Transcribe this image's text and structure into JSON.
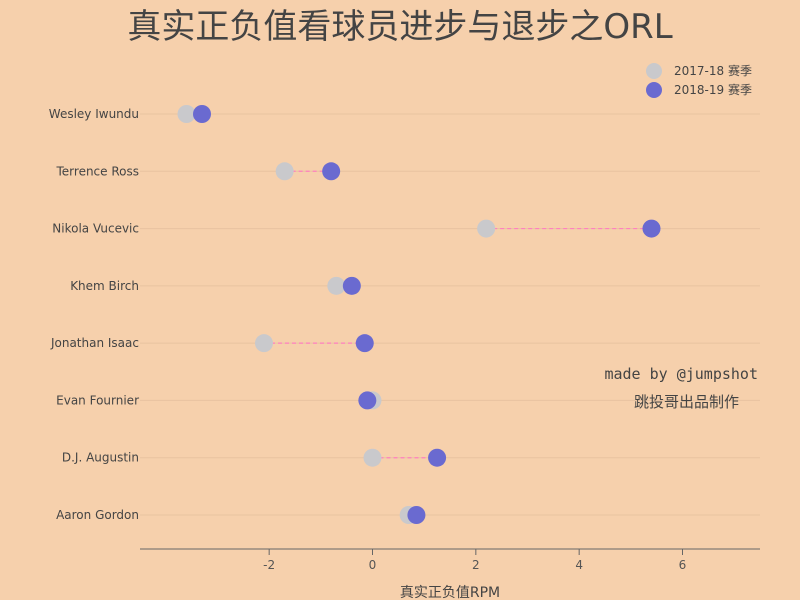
{
  "chart_data": {
    "type": "scatter",
    "title": "真实正负值看球员进步与退步之ORL",
    "xlabel": "真实正负值RPM",
    "ylabel": "",
    "xlim": [
      -4.5,
      7.5
    ],
    "xticks": [
      -2,
      0,
      2,
      4,
      6
    ],
    "xtick_labels": [
      "-2",
      "0",
      "2",
      "4",
      "6"
    ],
    "grid": "horizontal",
    "legend_position": "top-right",
    "categories": [
      "Wesley Iwundu",
      "Terrence Ross",
      "Nikola Vucevic",
      "Khem Birch",
      "Jonathan Isaac",
      "Evan Fournier",
      "D.J. Augustin",
      "Aaron Gordon"
    ],
    "series": [
      {
        "name": "2017-18 赛季",
        "color": "#c9c9cc",
        "values": [
          -3.6,
          -1.7,
          2.2,
          -0.7,
          -2.1,
          0.0,
          0.0,
          0.7
        ]
      },
      {
        "name": "2018-19 赛季",
        "color": "#6a6ad0",
        "values": [
          -3.3,
          -0.8,
          5.4,
          -0.4,
          -0.15,
          -0.1,
          1.25,
          0.85
        ]
      }
    ],
    "connector_color": "#ff80c0",
    "annotations": [
      "made by @jumpshot",
      "跳投哥出品制作"
    ]
  }
}
